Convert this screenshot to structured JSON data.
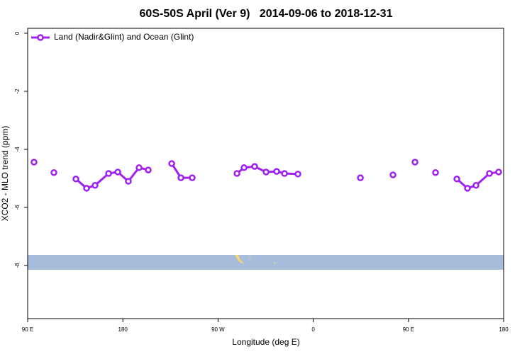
{
  "chart_data": {
    "type": "line",
    "title": "60S-50S April (Ver 9)   2014-09-06 to 2018-12-31",
    "xlabel": "Longitude (deg E)",
    "ylabel": "XCO2 - MLO trend (ppm)",
    "xlim": [
      90,
      540
    ],
    "ylim": [
      -9.83,
      0.17
    ],
    "xticks": [
      {
        "value": 90,
        "label": "90 E"
      },
      180,
      {
        "value": 270,
        "label": "90 W"
      },
      0,
      {
        "value": 450,
        "label": "90 E"
      },
      {
        "value": 540,
        "label": "180"
      }
    ],
    "yticks": [
      0,
      -2,
      -4,
      -6,
      -8
    ],
    "legend": "top-left",
    "series": [
      {
        "name": "Land (Nadir&Glint) and Ocean (Glint)",
        "color": "#a020f0",
        "x": [
          96,
          null,
          114.8,
          null,
          135.6,
          145.7,
          153.7,
          166.5,
          175.2,
          185.2,
          195.3,
          204,
          null,
          226.2,
          234.9,
          245.6,
          null,
          287.9,
          294.6,
          304.6,
          315.4,
          325.4,
          332.8,
          345.5,
          null,
          404.6,
          null,
          435.4,
          null,
          456.2,
          null,
          475.6,
          null,
          495.8,
          505.8,
          513.9,
          526.6,
          535.3
        ],
        "values": [
          -4.44,
          null,
          -4.8,
          null,
          -5.02,
          -5.34,
          -5.24,
          -4.83,
          -4.78,
          -5.1,
          -4.63,
          -4.71,
          null,
          -4.49,
          -4.98,
          -4.98,
          null,
          -4.83,
          -4.63,
          -4.59,
          -4.78,
          -4.76,
          -4.83,
          -4.85,
          null,
          -4.98,
          null,
          -4.88,
          null,
          -4.44,
          null,
          -4.8,
          null,
          -5.02,
          -5.34,
          -5.24,
          -4.83,
          -4.78
        ]
      }
    ]
  }
}
